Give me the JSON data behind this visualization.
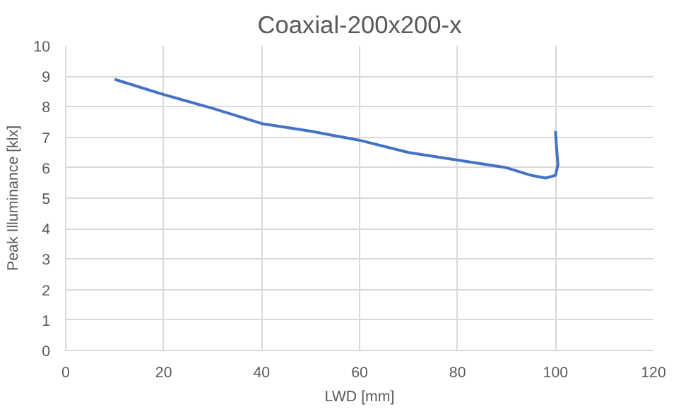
{
  "chart_data": {
    "type": "line",
    "title": "Coaxial-200x200-x",
    "xlabel": "LWD [mm]",
    "ylabel": "Peak Illuminance [klx]",
    "x": [
      10,
      20,
      30,
      40,
      50,
      60,
      70,
      80,
      90,
      95,
      98,
      100,
      100.5,
      100.2,
      100
    ],
    "series": [
      {
        "color": "#4472c4",
        "values": [
          8.9,
          8.4,
          7.95,
          7.45,
          7.2,
          6.9,
          6.5,
          6.25,
          6.0,
          5.75,
          5.66,
          5.75,
          6.1,
          6.7,
          7.2
        ]
      }
    ],
    "xlim": [
      0,
      120
    ],
    "xticks": [
      0,
      20,
      40,
      60,
      80,
      100,
      120
    ],
    "ylim": [
      0,
      10
    ],
    "yticks": [
      0,
      1,
      2,
      3,
      4,
      5,
      6,
      7,
      8,
      9,
      10
    ],
    "grid": true,
    "marker": "none",
    "line_style": "solid"
  }
}
